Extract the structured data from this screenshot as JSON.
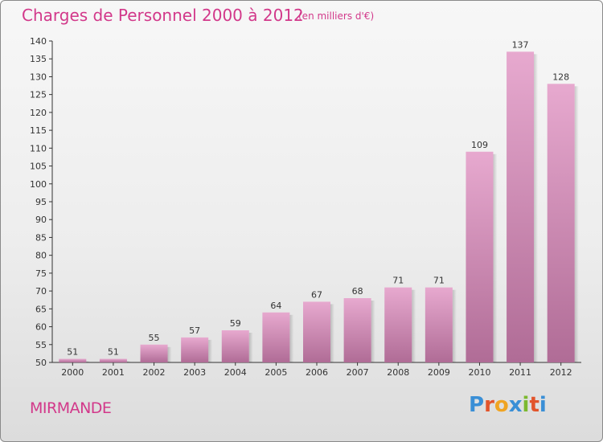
{
  "header": {
    "title": "Charges de Personnel 2000 à 2012",
    "subtitle": "(en milliers d'€)"
  },
  "footer": {
    "commune": "MIRMANDE",
    "logo": "Proxiti"
  },
  "colors": {
    "title": "#d2388a",
    "bar_top": "#e7a9cf",
    "bar_bottom": "#b06c96",
    "logo": [
      "#3a8fd6",
      "#e2542b",
      "#f0a422",
      "#3a8fd6",
      "#7cb92f",
      "#e2542b",
      "#3a8fd6"
    ]
  },
  "chart_data": {
    "type": "bar",
    "title": "Charges de Personnel 2000 à 2012",
    "subtitle": "(en milliers d'€)",
    "categories": [
      "2000",
      "2001",
      "2002",
      "2003",
      "2004",
      "2005",
      "2006",
      "2007",
      "2008",
      "2009",
      "2010",
      "2011",
      "2012"
    ],
    "values": [
      51,
      51,
      55,
      57,
      59,
      64,
      67,
      68,
      71,
      71,
      109,
      137,
      128
    ],
    "ylim": [
      50,
      140
    ],
    "yticks": [
      50,
      55,
      60,
      65,
      70,
      75,
      80,
      85,
      90,
      95,
      100,
      105,
      110,
      115,
      120,
      125,
      130,
      135,
      140
    ],
    "data_labels": true,
    "grid": false
  }
}
